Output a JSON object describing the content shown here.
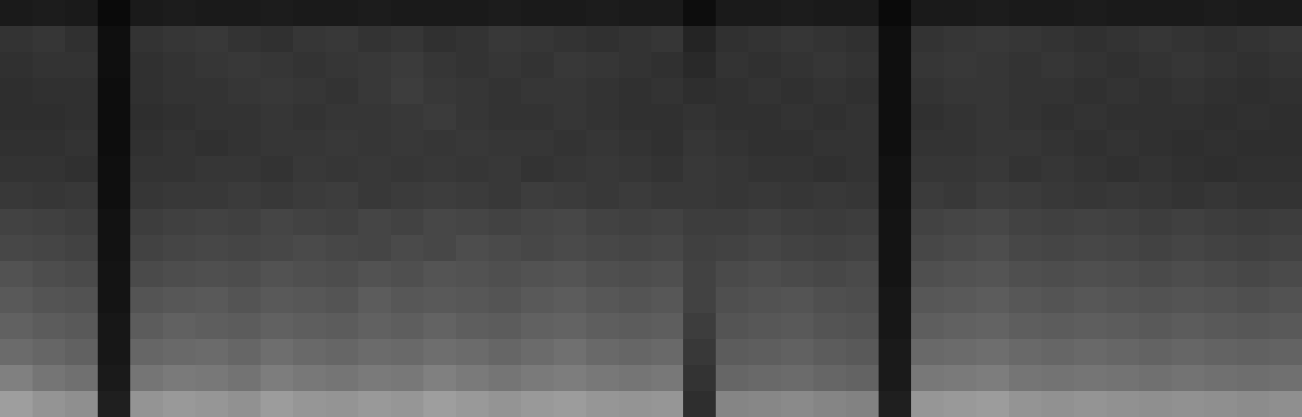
{
  "chart_data": {
    "type": "heatmap",
    "tick_labels": false,
    "grid": false,
    "color": "#ffffff",
    "zlim": [
      0,
      100
    ],
    "cells": [
      [
        10,
        11,
        10,
        4,
        10,
        11,
        10,
        10,
        11,
        10,
        10,
        11,
        10,
        10,
        10,
        11,
        10,
        10,
        11,
        10,
        10,
        5,
        10,
        10,
        11,
        10,
        10,
        4,
        10,
        10,
        11,
        10,
        10,
        11,
        10,
        10,
        10,
        11,
        10,
        10
      ],
      [
        20,
        21,
        19,
        6,
        20,
        21,
        22,
        20,
        19,
        21,
        22,
        20,
        21,
        19,
        20,
        22,
        21,
        20,
        19,
        20,
        21,
        14,
        19,
        20,
        21,
        20,
        19,
        6,
        20,
        21,
        22,
        21,
        20,
        19,
        20,
        21,
        20,
        19,
        20,
        21
      ],
      [
        19,
        20,
        20,
        6,
        19,
        20,
        21,
        22,
        21,
        20,
        21,
        22,
        23,
        21,
        20,
        21,
        20,
        22,
        21,
        20,
        19,
        16,
        20,
        19,
        20,
        21,
        20,
        6,
        21,
        22,
        21,
        20,
        21,
        20,
        19,
        20,
        21,
        20,
        19,
        20
      ],
      [
        18,
        19,
        19,
        5,
        19,
        20,
        20,
        21,
        22,
        21,
        20,
        22,
        24,
        22,
        21,
        20,
        21,
        21,
        20,
        19,
        20,
        18,
        19,
        20,
        19,
        20,
        19,
        6,
        20,
        21,
        21,
        20,
        20,
        19,
        20,
        19,
        20,
        19,
        18,
        19
      ],
      [
        18,
        18,
        19,
        5,
        18,
        19,
        20,
        20,
        21,
        20,
        21,
        21,
        22,
        23,
        21,
        20,
        20,
        21,
        20,
        19,
        19,
        20,
        19,
        19,
        20,
        19,
        20,
        6,
        19,
        20,
        21,
        20,
        19,
        20,
        19,
        19,
        19,
        18,
        19,
        18
      ],
      [
        19,
        19,
        20,
        5,
        19,
        20,
        19,
        20,
        21,
        21,
        22,
        21,
        22,
        21,
        22,
        21,
        21,
        20,
        21,
        20,
        19,
        21,
        20,
        19,
        19,
        20,
        20,
        6,
        20,
        20,
        21,
        21,
        20,
        19,
        20,
        19,
        18,
        19,
        18,
        18
      ],
      [
        20,
        20,
        19,
        6,
        20,
        20,
        21,
        21,
        20,
        22,
        21,
        22,
        21,
        22,
        21,
        22,
        20,
        21,
        22,
        21,
        20,
        22,
        21,
        20,
        20,
        19,
        20,
        7,
        21,
        21,
        22,
        20,
        21,
        20,
        19,
        20,
        19,
        18,
        19,
        19
      ],
      [
        22,
        21,
        22,
        6,
        21,
        22,
        22,
        23,
        22,
        23,
        24,
        22,
        23,
        24,
        23,
        22,
        24,
        23,
        22,
        23,
        22,
        22,
        21,
        22,
        21,
        22,
        21,
        7,
        23,
        22,
        24,
        23,
        22,
        21,
        22,
        21,
        20,
        21,
        20,
        20
      ],
      [
        26,
        25,
        24,
        7,
        24,
        25,
        26,
        25,
        27,
        26,
        25,
        27,
        26,
        28,
        27,
        26,
        27,
        28,
        26,
        25,
        26,
        24,
        24,
        25,
        24,
        23,
        24,
        8,
        26,
        27,
        28,
        26,
        25,
        26,
        25,
        24,
        25,
        24,
        23,
        24
      ],
      [
        28,
        27,
        26,
        7,
        26,
        27,
        28,
        27,
        28,
        29,
        28,
        27,
        29,
        28,
        30,
        29,
        28,
        29,
        28,
        27,
        28,
        25,
        26,
        27,
        26,
        25,
        26,
        8,
        28,
        29,
        30,
        28,
        27,
        28,
        27,
        26,
        27,
        26,
        25,
        26
      ],
      [
        32,
        30,
        29,
        8,
        29,
        30,
        31,
        30,
        32,
        31,
        30,
        32,
        31,
        33,
        32,
        31,
        32,
        33,
        31,
        30,
        31,
        26,
        29,
        30,
        29,
        28,
        29,
        8,
        31,
        32,
        33,
        31,
        30,
        31,
        30,
        29,
        30,
        29,
        28,
        29
      ],
      [
        35,
        33,
        32,
        8,
        33,
        34,
        35,
        33,
        35,
        34,
        33,
        36,
        34,
        35,
        34,
        33,
        35,
        36,
        34,
        33,
        34,
        26,
        31,
        32,
        33,
        31,
        30,
        9,
        34,
        35,
        36,
        34,
        33,
        34,
        33,
        32,
        33,
        32,
        31,
        32
      ],
      [
        38,
        36,
        35,
        9,
        36,
        38,
        37,
        36,
        38,
        37,
        36,
        38,
        37,
        39,
        37,
        36,
        38,
        39,
        37,
        36,
        37,
        24,
        33,
        34,
        35,
        33,
        32,
        9,
        37,
        38,
        39,
        37,
        36,
        37,
        36,
        35,
        36,
        35,
        34,
        35
      ],
      [
        42,
        40,
        38,
        9,
        40,
        41,
        42,
        40,
        43,
        41,
        40,
        42,
        41,
        43,
        42,
        40,
        42,
        44,
        41,
        40,
        41,
        22,
        36,
        37,
        38,
        36,
        35,
        10,
        41,
        42,
        43,
        41,
        40,
        41,
        40,
        39,
        40,
        39,
        38,
        39
      ],
      [
        50,
        46,
        44,
        10,
        46,
        48,
        47,
        45,
        49,
        47,
        46,
        48,
        47,
        50,
        48,
        46,
        48,
        49,
        47,
        46,
        47,
        20,
        40,
        41,
        42,
        40,
        39,
        10,
        47,
        48,
        49,
        46,
        45,
        46,
        45,
        44,
        45,
        44,
        43,
        44
      ],
      [
        62,
        58,
        56,
        12,
        58,
        60,
        59,
        57,
        61,
        59,
        58,
        60,
        59,
        62,
        60,
        58,
        60,
        61,
        59,
        58,
        59,
        18,
        52,
        53,
        54,
        52,
        51,
        12,
        59,
        60,
        61,
        58,
        57,
        58,
        57,
        56,
        57,
        56,
        55,
        56
      ]
    ]
  }
}
